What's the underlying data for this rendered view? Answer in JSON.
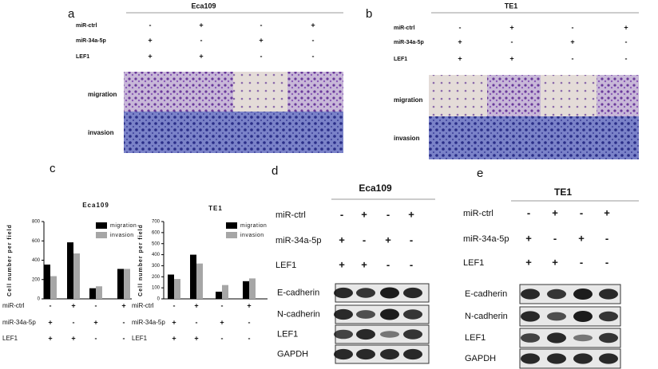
{
  "panels": [
    {
      "label": "a",
      "title": "Eca109",
      "rows": [
        {
          "name": "miR-ctrl",
          "signs": [
            "-",
            "+",
            "-",
            "+"
          ]
        },
        {
          "name": "miR-34a-5p",
          "signs": [
            "+",
            "-",
            "+",
            "-"
          ]
        },
        {
          "name": "LEF1",
          "signs": [
            "+",
            "+",
            "-",
            "-"
          ]
        }
      ],
      "image_rows": [
        "migration",
        "invasion"
      ]
    },
    {
      "label": "b",
      "title": "TE1",
      "rows": [
        {
          "name": "miR-ctrl",
          "signs": [
            "-",
            "+",
            "-",
            "+"
          ]
        },
        {
          "name": "miR-34a-5p",
          "signs": [
            "+",
            "-",
            "+",
            "-"
          ]
        },
        {
          "name": "LEF1",
          "signs": [
            "+",
            "+",
            "-",
            "-"
          ]
        }
      ],
      "image_rows": [
        "migration",
        "invasion"
      ]
    },
    {
      "label": "d",
      "title": "Eca109",
      "rows": [
        {
          "name": "miR-ctrl",
          "signs": [
            "-",
            "+",
            "-",
            "+"
          ]
        },
        {
          "name": "miR-34a-5p",
          "signs": [
            "+",
            "-",
            "+",
            "-"
          ]
        },
        {
          "name": "LEF1",
          "signs": [
            "+",
            "+",
            "-",
            "-"
          ]
        }
      ],
      "blots": [
        "E-cadherin",
        "N-cadherin",
        "LEF1",
        "GAPDH"
      ]
    },
    {
      "label": "e",
      "title": "TE1",
      "rows": [
        {
          "name": "miR-ctrl",
          "signs": [
            "-",
            "+",
            "-",
            "+"
          ]
        },
        {
          "name": "miR-34a-5p",
          "signs": [
            "+",
            "-",
            "+",
            "-"
          ]
        },
        {
          "name": "LEF1",
          "signs": [
            "+",
            "+",
            "-",
            "-"
          ]
        }
      ],
      "blots": [
        "E-cadherin",
        "N-cadherin",
        "LEF1",
        "GAPDH"
      ]
    }
  ],
  "chart_label": "c",
  "chart_data": [
    {
      "type": "bar",
      "title": "Eca109",
      "y_label": "Cell number per field",
      "categories": [
        null,
        null,
        null,
        null
      ],
      "series": [
        {
          "name": "migration",
          "color": "#000000",
          "values": [
            355,
            585,
            110,
            310
          ]
        },
        {
          "name": "invasion",
          "color": "#a6a6a6",
          "values": [
            235,
            470,
            130,
            310
          ]
        }
      ],
      "ylim": [
        0,
        800
      ],
      "yticks": [
        0,
        200,
        400,
        600,
        800
      ],
      "conditions": [
        {
          "name": "miR-ctrl",
          "signs": [
            "-",
            "+",
            "-",
            "+"
          ]
        },
        {
          "name": "miR-34a-5p",
          "signs": [
            "+",
            "-",
            "+",
            "-"
          ]
        },
        {
          "name": "LEF1",
          "signs": [
            "+",
            "+",
            "-",
            "-"
          ]
        }
      ]
    },
    {
      "type": "bar",
      "title": "TE1",
      "y_label": "Cell number per field",
      "categories": [
        null,
        null,
        null,
        null
      ],
      "series": [
        {
          "name": "migration",
          "color": "#000000",
          "values": [
            220,
            400,
            65,
            160
          ]
        },
        {
          "name": "invasion",
          "color": "#a6a6a6",
          "values": [
            180,
            320,
            125,
            185
          ]
        }
      ],
      "ylim": [
        0,
        700
      ],
      "yticks": [
        0,
        100,
        200,
        300,
        400,
        500,
        600,
        700
      ],
      "conditions": [
        {
          "name": "miR-ctrl",
          "signs": [
            "-",
            "+",
            "-",
            "+"
          ]
        },
        {
          "name": "miR-34a-5p",
          "signs": [
            "+",
            "-",
            "+",
            "-"
          ]
        },
        {
          "name": "LEF1",
          "signs": [
            "+",
            "+",
            "-",
            "-"
          ]
        }
      ]
    }
  ]
}
